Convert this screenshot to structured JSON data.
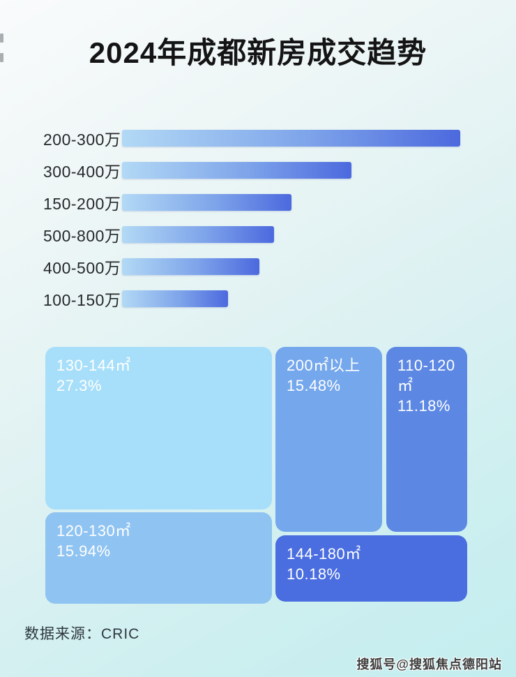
{
  "title": "2024年成都新房成交趋势",
  "bar_chart": {
    "rows": [
      {
        "label": "200-300万",
        "width_pct": 100
      },
      {
        "label": "300-400万",
        "width_pct": 67.8
      },
      {
        "label": "150-200万",
        "width_pct": 50.1
      },
      {
        "label": "500-800万",
        "width_pct": 44.9
      },
      {
        "label": "400-500万",
        "width_pct": 40.6
      },
      {
        "label": "100-150万",
        "width_pct": 31.3
      }
    ],
    "bar_gradient_from": "#b2d9f5",
    "bar_gradient_to": "#4c69de"
  },
  "treemap": {
    "cells": [
      {
        "name": "130-144㎡",
        "pct": "27.3%",
        "color": "#a7dffa"
      },
      {
        "name": "200㎡以上",
        "pct": "15.48%",
        "color": "#74a7ec"
      },
      {
        "name": "110-120㎡",
        "pct": "11.18%",
        "color": "#5c88e4"
      },
      {
        "name": "120-130㎡",
        "pct": "15.94%",
        "color": "#8fc3f1"
      },
      {
        "name": "144-180㎡",
        "pct": "10.18%",
        "color": "#4a6de0"
      }
    ]
  },
  "footer": {
    "source_label": "数据来源：CRIC"
  },
  "watermark": "搜狐号@搜狐焦点德阳站",
  "chart_data": [
    {
      "type": "bar",
      "orientation": "horizontal",
      "title": "2024年成都新房成交趋势",
      "categories": [
        "200-300万",
        "300-400万",
        "150-200万",
        "500-800万",
        "400-500万",
        "100-150万"
      ],
      "values_relative_pct_of_longest_bar": [
        100,
        67.8,
        50.1,
        44.9,
        40.6,
        31.3
      ],
      "value_labels_shown": false,
      "axis_shown": false,
      "grid": false,
      "legend": false,
      "bar_color_gradient": [
        "#b2d9f5",
        "#4c69de"
      ],
      "note": "numeric values are not printed on the chart; lengths estimated from pixels relative to the longest bar"
    },
    {
      "type": "treemap",
      "title": "",
      "unit": "percent of transactions by dwelling size",
      "cells": [
        {
          "label": "130-144㎡",
          "value": 27.3,
          "color": "#a7dffa"
        },
        {
          "label": "200㎡以上",
          "value": 15.48,
          "color": "#74a7ec"
        },
        {
          "label": "110-120㎡",
          "value": 11.18,
          "color": "#5c88e4"
        },
        {
          "label": "120-130㎡",
          "value": 15.94,
          "color": "#8fc3f1"
        },
        {
          "label": "144-180㎡",
          "value": 10.18,
          "color": "#4a6de0"
        }
      ],
      "source": "数据来源：CRIC"
    }
  ]
}
